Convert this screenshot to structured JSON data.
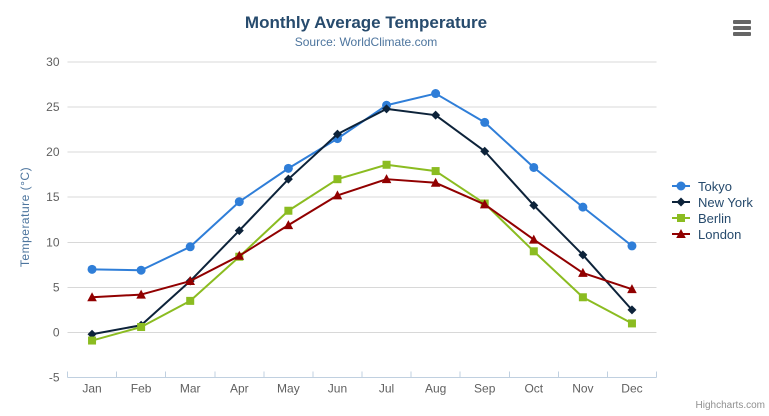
{
  "chart_data": {
    "type": "line",
    "title": "Monthly Average Temperature",
    "subtitle": "Source: WorldClimate.com",
    "categories": [
      "Jan",
      "Feb",
      "Mar",
      "Apr",
      "May",
      "Jun",
      "Jul",
      "Aug",
      "Sep",
      "Oct",
      "Nov",
      "Dec"
    ],
    "series": [
      {
        "name": "Tokyo",
        "color": "#2f7ed8",
        "marker": "circle",
        "values": [
          7.0,
          6.9,
          9.5,
          14.5,
          18.2,
          21.5,
          25.2,
          26.5,
          23.3,
          18.3,
          13.9,
          9.6
        ]
      },
      {
        "name": "New York",
        "color": "#0d233a",
        "marker": "diamond",
        "values": [
          -0.2,
          0.8,
          5.7,
          11.3,
          17.0,
          22.0,
          24.8,
          24.1,
          20.1,
          14.1,
          8.6,
          2.5
        ]
      },
      {
        "name": "Berlin",
        "color": "#8bbc21",
        "marker": "square",
        "values": [
          -0.9,
          0.6,
          3.5,
          8.4,
          13.5,
          17.0,
          18.6,
          17.9,
          14.3,
          9.0,
          3.9,
          1.0
        ]
      },
      {
        "name": "London",
        "color": "#910000",
        "marker": "triangle",
        "values": [
          3.9,
          4.2,
          5.7,
          8.5,
          11.9,
          15.2,
          17.0,
          16.6,
          14.2,
          10.3,
          6.6,
          4.8
        ]
      }
    ],
    "xlabel": "",
    "ylabel": "Temperature (°C)",
    "ylim": [
      -5,
      30
    ],
    "tick_interval": 5,
    "grid": true,
    "legend_position": "right-middle"
  },
  "credits": {
    "label": "Highcharts.com"
  },
  "icons": {
    "context_menu": "hamburger-menu-icon"
  },
  "colors": {
    "title": "#274b6d",
    "subtitle": "#4d759e",
    "axis_title": "#4d759e",
    "axis_labels": "#606060",
    "grid_line": "#d8d8d8",
    "axis_line": "#c0d0e0",
    "credits": "#909090",
    "menu_icon": "#666666",
    "background": "#ffffff"
  }
}
